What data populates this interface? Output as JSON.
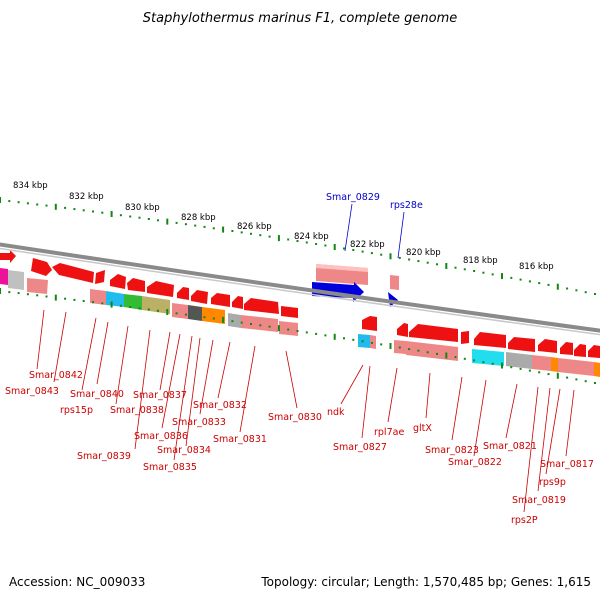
{
  "title": "Staphylothermus marinus F1, complete genome",
  "footer": {
    "accession": "Accession: NC_009033",
    "summary": "Topology: circular; Length: 1,570,485 bp; Genes: 1,615"
  },
  "colors": {
    "backbone": "#8a8a8a",
    "gene_red": "#ee1111",
    "gene_pink": "#ee8888",
    "gene_blue": "#0000dd",
    "label_red": "#cc0000",
    "label_blue": "#0000cc",
    "ticks": "#118811"
  },
  "coordinate_labels": [
    "834 kbp",
    "832 kbp",
    "830 kbp",
    "828 kbp",
    "826 kbp",
    "824 kbp",
    "822 kbp",
    "820 kbp",
    "818 kbp",
    "816 kbp"
  ],
  "highlighted_genes": [
    "Smar_0829",
    "rps28e"
  ],
  "gene_labels": [
    "Smar_0842",
    "Smar_0843",
    "Smar_0840",
    "rps15p",
    "Smar_0838",
    "Smar_0839",
    "Smar_0837",
    "Smar_0836",
    "Smar_0835",
    "Smar_0834",
    "Smar_0833",
    "Smar_0832",
    "Smar_0831",
    "Smar_0830",
    "ndk",
    "Smar_0827",
    "rpl7ae",
    "gltX",
    "Smar_0823",
    "Smar_0822",
    "Smar_0821",
    "Smar_0817",
    "rps9p",
    "Smar_0819",
    "rps2P"
  ]
}
